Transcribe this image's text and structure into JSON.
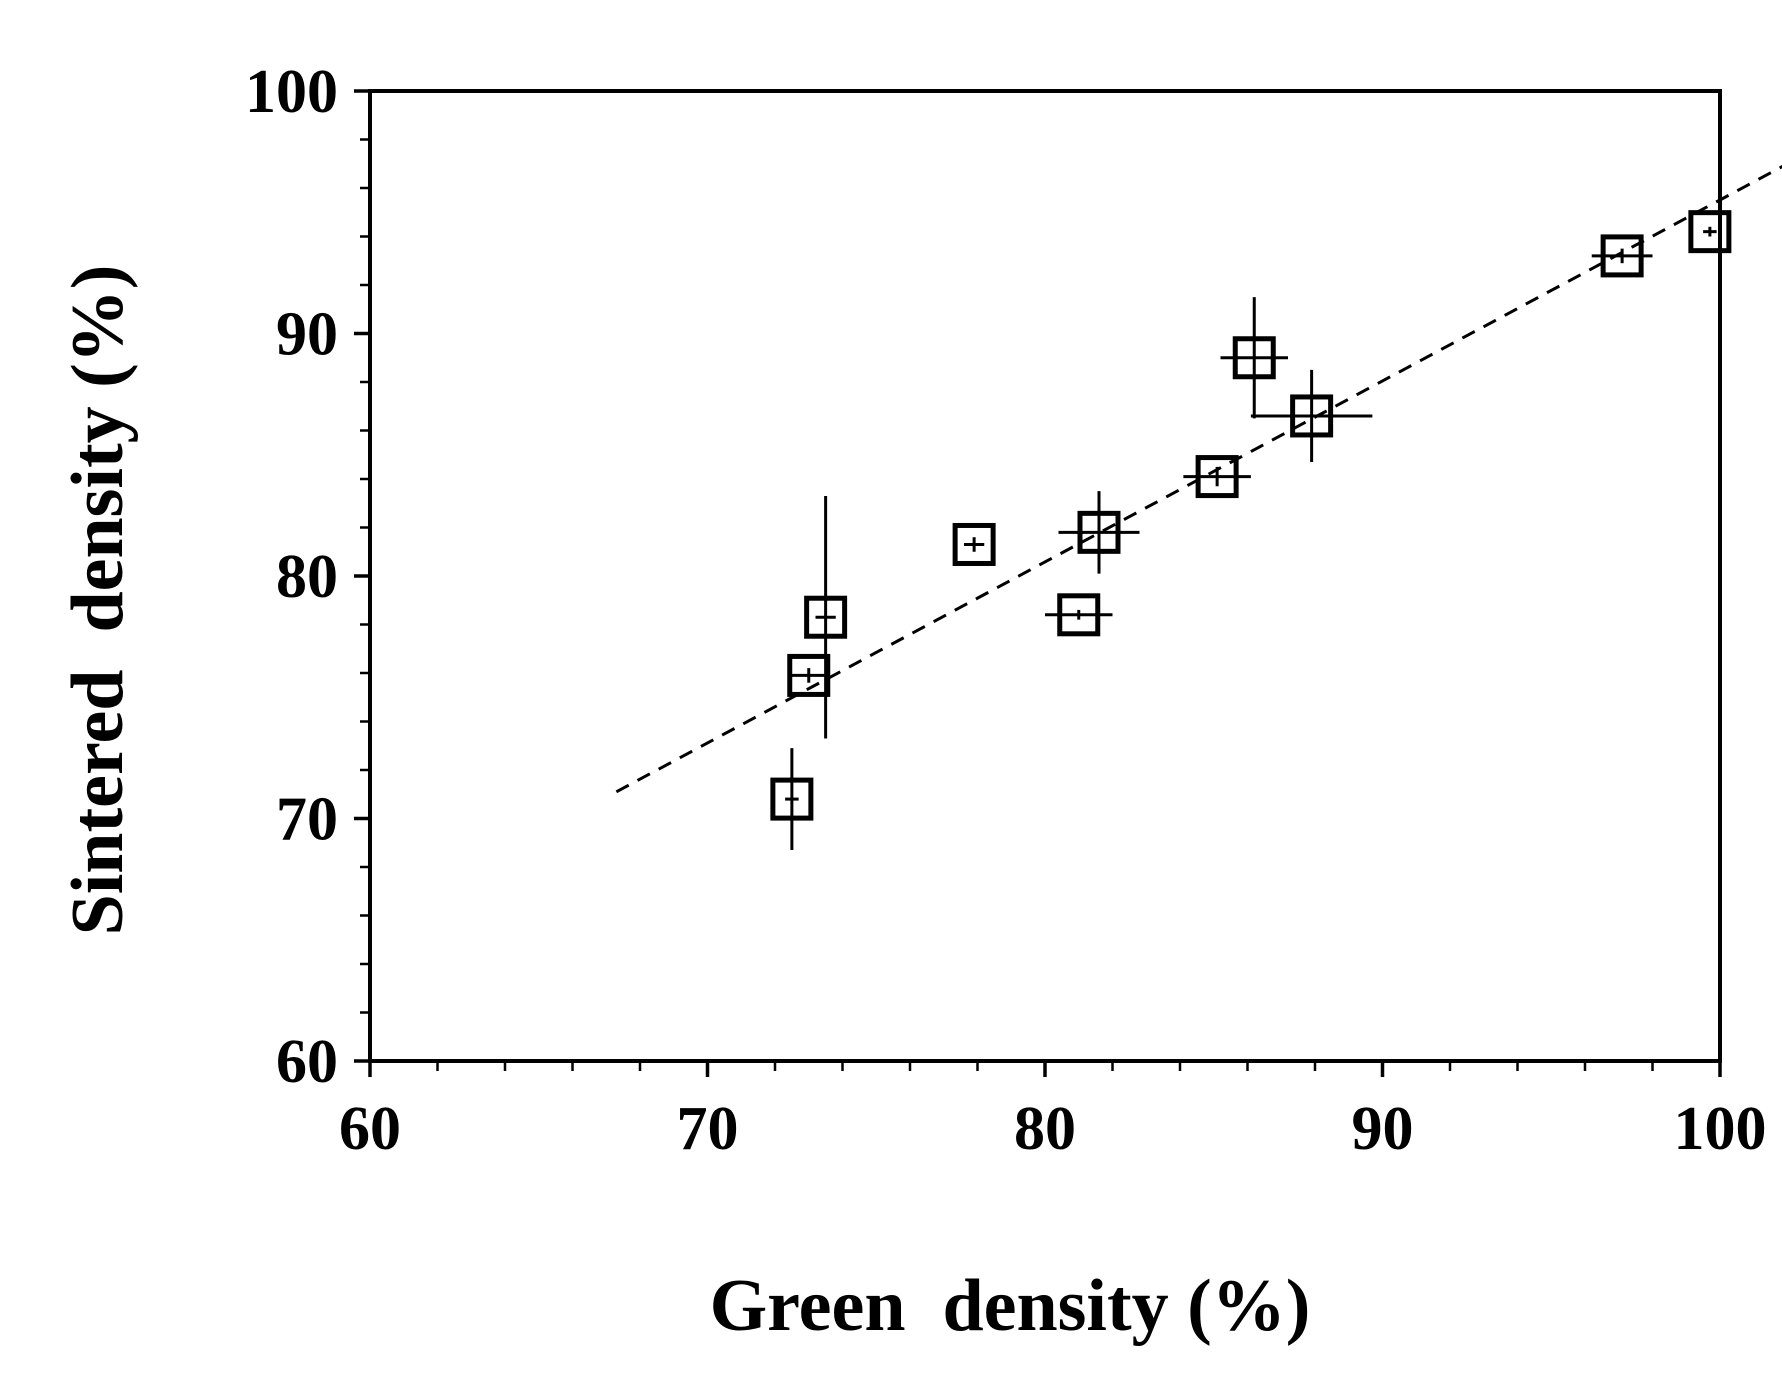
{
  "chart_data": {
    "type": "scatter",
    "xlabel": "Green  density (%)",
    "ylabel": "Sintered  density (%)",
    "xlim": [
      60,
      100
    ],
    "ylim": [
      60,
      100
    ],
    "x_ticks": [
      "60",
      "70",
      "80",
      "90",
      "100"
    ],
    "y_ticks": [
      "60",
      "70",
      "80",
      "90",
      "100"
    ],
    "grid": false,
    "legend": "none",
    "colors": {
      "axis": "#000000",
      "marker": "#000000",
      "trendline": "#000000",
      "background": "#ffffff"
    },
    "marker": "open-square",
    "series": [
      {
        "points": [
          {
            "x": 72.5,
            "y": 70.8,
            "x_err": 0.2,
            "y_err": 2.1
          },
          {
            "x": 73.0,
            "y": 75.9,
            "x_err": 0.6,
            "y_err": 0.3
          },
          {
            "x": 73.5,
            "y": 78.3,
            "x_err": 0.3,
            "y_err": 5.0
          },
          {
            "x": 77.9,
            "y": 81.3,
            "x_err": 0.3,
            "y_err": 0.3
          },
          {
            "x": 81.0,
            "y": 78.4,
            "x_err": 1.0,
            "y_err": 0.2
          },
          {
            "x": 81.6,
            "y": 81.8,
            "x_err": 1.2,
            "y_err": 1.7
          },
          {
            "x": 85.1,
            "y": 84.1,
            "x_err": 1.0,
            "y_err": 0.4
          },
          {
            "x": 86.2,
            "y": 89.0,
            "x_err": 1.0,
            "y_err": 2.5
          },
          {
            "x": 87.9,
            "y": 86.6,
            "x_err": 1.8,
            "y_err": 1.9
          },
          {
            "x": 97.1,
            "y": 93.2,
            "x_err": 0.9,
            "y_err": 0.3
          },
          {
            "x": 99.7,
            "y": 94.2,
            "x_err": 0.2,
            "y_err": 0.2
          }
        ]
      }
    ],
    "trendline": {
      "style": "dashed",
      "x": [
        67.3,
        102.0
      ],
      "y": [
        71.1,
        97.0
      ]
    }
  }
}
